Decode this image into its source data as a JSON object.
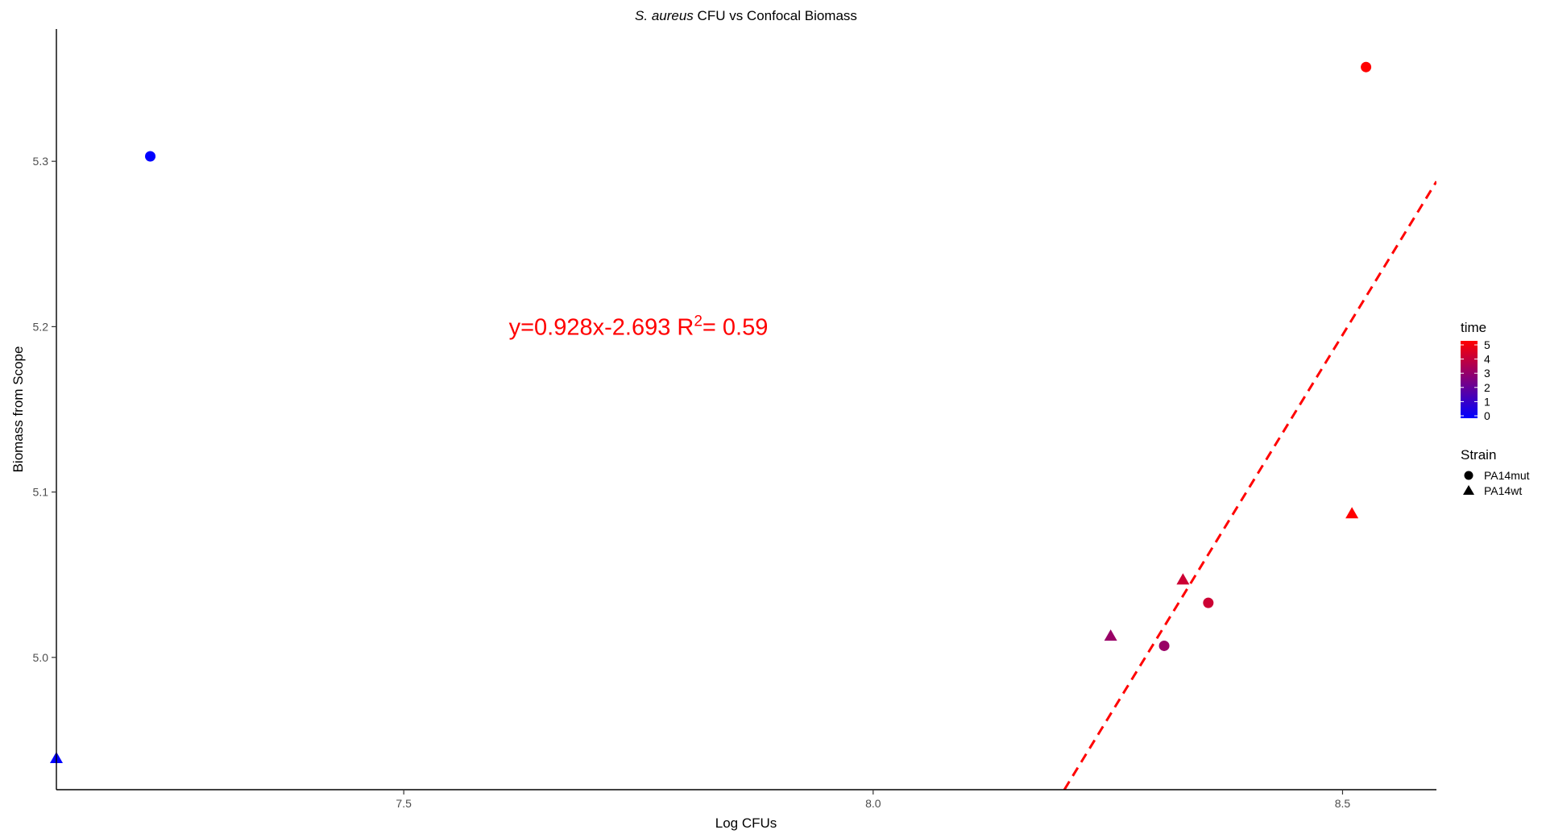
{
  "chart_data": {
    "type": "scatter",
    "title_italic": "S. aureus",
    "title_rest": " CFU vs Confocal Biomass",
    "xlabel": "Log CFUs",
    "ylabel": "Biomass from Scope",
    "xlim": [
      7.13,
      8.6
    ],
    "ylim": [
      4.92,
      5.38
    ],
    "xticks": [
      7.5,
      8.0,
      8.5
    ],
    "xtick_labels": [
      "7.5",
      "8.0",
      "8.5"
    ],
    "yticks": [
      5.0,
      5.1,
      5.2,
      5.3
    ],
    "ytick_labels": [
      "5.0",
      "5.1",
      "5.2",
      "5.3"
    ],
    "grid": false,
    "points": [
      {
        "x": 7.23,
        "y": 5.303,
        "time": 0,
        "strain": "PA14mut"
      },
      {
        "x": 7.13,
        "y": 4.939,
        "time": 0,
        "strain": "PA14wt"
      },
      {
        "x": 8.525,
        "y": 5.357,
        "time": 5,
        "strain": "PA14mut"
      },
      {
        "x": 8.51,
        "y": 5.087,
        "time": 5,
        "strain": "PA14wt"
      },
      {
        "x": 8.33,
        "y": 5.047,
        "time": 4,
        "strain": "PA14wt"
      },
      {
        "x": 8.357,
        "y": 5.033,
        "time": 4,
        "strain": "PA14mut"
      },
      {
        "x": 8.253,
        "y": 5.013,
        "time": 3,
        "strain": "PA14wt"
      },
      {
        "x": 8.31,
        "y": 5.007,
        "time": 3,
        "strain": "PA14mut"
      }
    ],
    "fit_line": {
      "slope": 0.928,
      "intercept": -2.693,
      "color": "#ff0000",
      "style": "dashed"
    },
    "annotation": {
      "prefix": "y=0.928x-2.693 R",
      "superscript": "2",
      "suffix": "= 0.59",
      "x": 7.75,
      "y": 5.2,
      "color": "#ff0000"
    },
    "legend_color": {
      "title": "time",
      "labels": [
        "5",
        "4",
        "3",
        "2",
        "1",
        "0"
      ],
      "min": 0,
      "max": 5,
      "low_color": "#0000ff",
      "high_color": "#ff0000"
    },
    "legend_shape": {
      "title": "Strain",
      "items": [
        {
          "label": "PA14mut",
          "shape": "circle"
        },
        {
          "label": "PA14wt",
          "shape": "triangle"
        }
      ]
    }
  }
}
